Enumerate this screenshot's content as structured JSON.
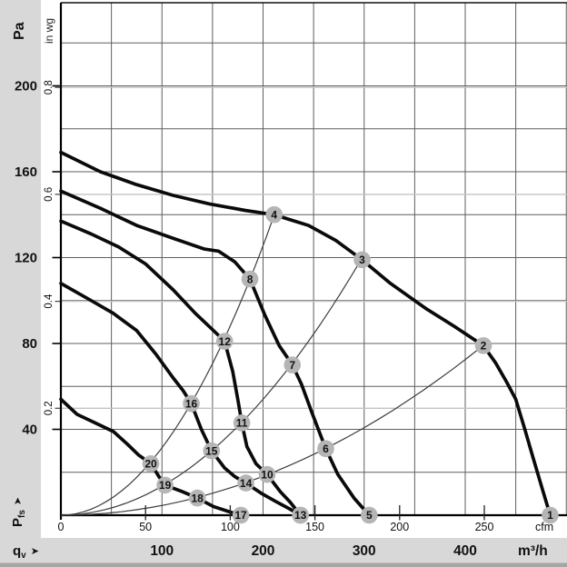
{
  "colors": {
    "band": "#d8d8d8",
    "band_edge": "#a6a6a6",
    "grid_major": "#5f5f5f",
    "grid_minor": "#c3c3c3",
    "axis": "#000000",
    "curve": "#0a0a0a",
    "parabola": "#3c3c3c",
    "bubble_fill": "#b5b5b5",
    "bubble_text": "#ffffff"
  },
  "left_panel": {
    "si_unit": "Pa",
    "imp_unit": "in wg",
    "axis_symbol": "P",
    "axis_symbol_sub": "fs",
    "arrow": "➤",
    "pa_ticks": [
      200,
      160,
      120,
      80,
      40
    ],
    "inwg_ticks": [
      0.8,
      0.6,
      0.4,
      0.2
    ]
  },
  "bottom_panel": {
    "axis_symbol": "q",
    "axis_symbol_sub": "v",
    "arrow": "➤",
    "si_unit": "m³/h",
    "imp_unit": "cfm",
    "m3h_ticks": [
      100,
      200,
      300,
      400
    ],
    "cfm_ticks": [
      0,
      50,
      100,
      150,
      200,
      250
    ]
  },
  "chart_data": {
    "type": "line",
    "x_axis": {
      "symbol": "qv",
      "unit": "m³/h",
      "range": [
        0,
        500
      ],
      "ticks": [
        0,
        100,
        200,
        300,
        400
      ],
      "secondary_unit": "cfm",
      "secondary_ticks": [
        0,
        50,
        100,
        150,
        200,
        250
      ]
    },
    "y_axis": {
      "symbol": "Pfs",
      "unit": "Pa",
      "range": [
        0,
        237
      ],
      "ticks": [
        40,
        80,
        120,
        160,
        200
      ],
      "secondary_unit": "in wg",
      "secondary_ticks": [
        0.2,
        0.4,
        0.6,
        0.8
      ]
    },
    "grid": {
      "major_x_step_m3h": 50,
      "major_y_step_pa": 20,
      "minor_y_inwg": [
        0.2,
        0.4,
        0.6,
        0.8
      ],
      "legend": "none"
    },
    "fan_curves": [
      {
        "id": 1,
        "points": [
          [
            0,
            169
          ],
          [
            39,
            160
          ],
          [
            75,
            154
          ],
          [
            111,
            149
          ],
          [
            147,
            145
          ],
          [
            182,
            142
          ],
          [
            211,
            140
          ],
          [
            245,
            135
          ],
          [
            272,
            128
          ],
          [
            298,
            119
          ],
          [
            326,
            108
          ],
          [
            362,
            96
          ],
          [
            389,
            88
          ],
          [
            418,
            79
          ],
          [
            430,
            71
          ],
          [
            441,
            62
          ],
          [
            450,
            54
          ],
          [
            459,
            40
          ],
          [
            467,
            27
          ],
          [
            477,
            11
          ],
          [
            484,
            0
          ]
        ],
        "operating_points": [
          {
            "n": 4,
            "q": 211,
            "p": 140
          },
          {
            "n": 3,
            "q": 298,
            "p": 119
          },
          {
            "n": 2,
            "q": 418,
            "p": 79
          },
          {
            "n": 1,
            "q": 484,
            "p": 0
          }
        ]
      },
      {
        "id": 2,
        "points": [
          [
            0,
            151
          ],
          [
            39,
            143
          ],
          [
            75,
            135
          ],
          [
            111,
            129
          ],
          [
            142,
            124
          ],
          [
            156,
            123
          ],
          [
            172,
            118
          ],
          [
            187,
            110
          ],
          [
            202,
            93
          ],
          [
            216,
            79
          ],
          [
            229,
            70
          ],
          [
            238,
            61
          ],
          [
            249,
            47
          ],
          [
            262,
            31
          ],
          [
            274,
            19
          ],
          [
            290,
            8
          ],
          [
            305,
            0
          ]
        ],
        "operating_points": [
          {
            "n": 8,
            "q": 187,
            "p": 110
          },
          {
            "n": 7,
            "q": 229,
            "p": 70
          },
          {
            "n": 6,
            "q": 262,
            "p": 31
          },
          {
            "n": 5,
            "q": 305,
            "p": 0
          }
        ]
      },
      {
        "id": 3,
        "points": [
          [
            0,
            137
          ],
          [
            30,
            131
          ],
          [
            57,
            125
          ],
          [
            84,
            117
          ],
          [
            111,
            105
          ],
          [
            133,
            94
          ],
          [
            151,
            86
          ],
          [
            162,
            81
          ],
          [
            170,
            67
          ],
          [
            175,
            54
          ],
          [
            179,
            43
          ],
          [
            184,
            32
          ],
          [
            193,
            24
          ],
          [
            204,
            19
          ],
          [
            217,
            11
          ],
          [
            227,
            6
          ],
          [
            237,
            0
          ]
        ],
        "operating_points": [
          {
            "n": 12,
            "q": 162,
            "p": 81
          },
          {
            "n": 11,
            "q": 179,
            "p": 43
          },
          {
            "n": 10,
            "q": 204,
            "p": 19
          },
          {
            "n": 9,
            "q": 237,
            "p": 0
          }
        ]
      },
      {
        "id": 4,
        "points": [
          [
            0,
            108
          ],
          [
            30,
            100
          ],
          [
            52,
            94
          ],
          [
            75,
            86
          ],
          [
            94,
            75
          ],
          [
            111,
            64
          ],
          [
            121,
            58
          ],
          [
            129,
            52
          ],
          [
            139,
            40
          ],
          [
            149,
            30
          ],
          [
            162,
            22
          ],
          [
            172,
            18
          ],
          [
            183,
            15
          ],
          [
            199,
            10
          ],
          [
            214,
            6
          ],
          [
            226,
            3
          ],
          [
            237,
            0
          ]
        ],
        "operating_points": [
          {
            "n": 16,
            "q": 129,
            "p": 52
          },
          {
            "n": 15,
            "q": 149,
            "p": 30
          },
          {
            "n": 14,
            "q": 183,
            "p": 15
          },
          {
            "n": 13,
            "q": 237,
            "p": 0
          }
        ]
      },
      {
        "id": 5,
        "points": [
          [
            0,
            54
          ],
          [
            16,
            47
          ],
          [
            34,
            43
          ],
          [
            52,
            39
          ],
          [
            66,
            33
          ],
          [
            77,
            28
          ],
          [
            89,
            24
          ],
          [
            97,
            18
          ],
          [
            103,
            14
          ],
          [
            120,
            11
          ],
          [
            135,
            8
          ],
          [
            151,
            4
          ],
          [
            164,
            2
          ],
          [
            178,
            0
          ]
        ],
        "operating_points": [
          {
            "n": 20,
            "q": 89,
            "p": 24
          },
          {
            "n": 19,
            "q": 103,
            "p": 14
          },
          {
            "n": 18,
            "q": 135,
            "p": 8
          },
          {
            "n": 17,
            "q": 178,
            "p": 0
          }
        ]
      }
    ],
    "system_parabolas": [
      {
        "id": "A",
        "k": 0.00314,
        "q_end": 211,
        "through_points": [
          20,
          16,
          12,
          8,
          4
        ]
      },
      {
        "id": "B",
        "k": 0.00135,
        "q_end": 298,
        "through_points": [
          19,
          15,
          11,
          7,
          3
        ]
      },
      {
        "id": "C",
        "k": 0.000453,
        "q_end": 418,
        "through_points": [
          18,
          14,
          10,
          6,
          2
        ]
      }
    ]
  }
}
